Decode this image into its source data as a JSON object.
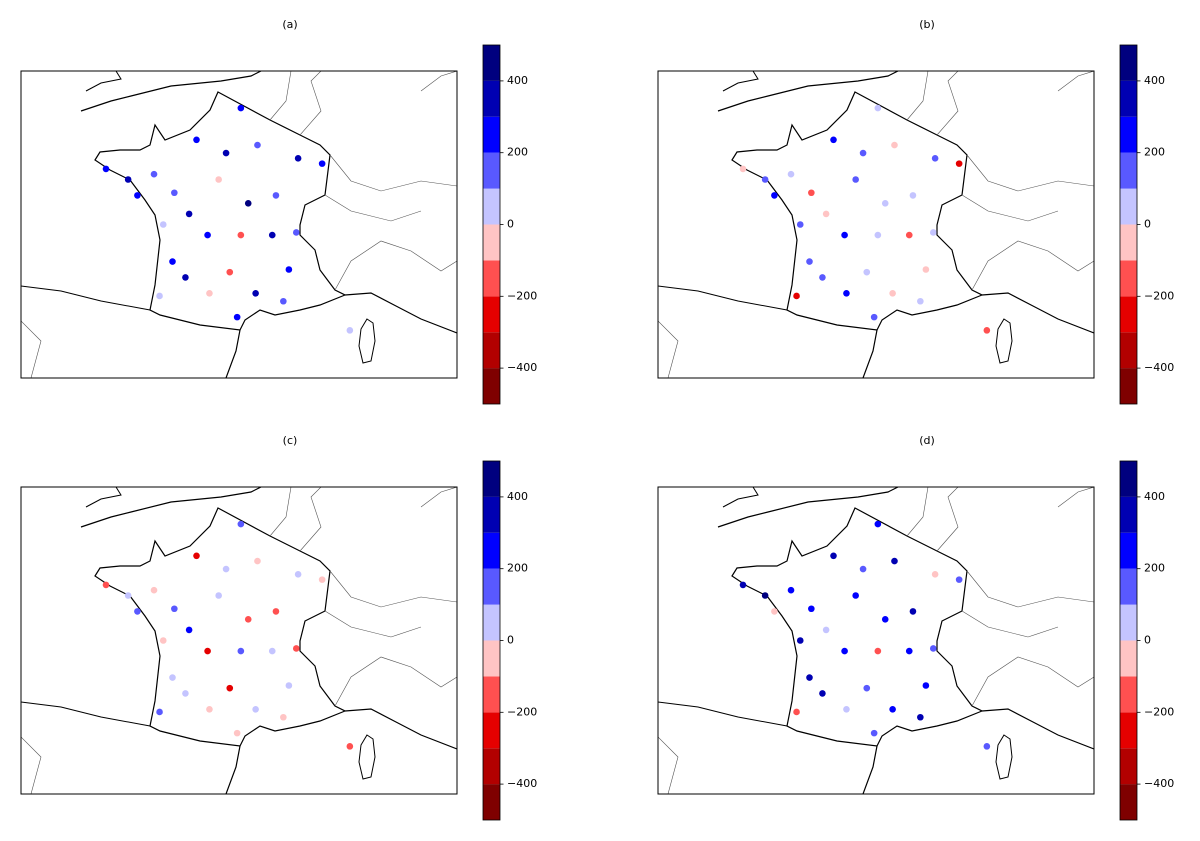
{
  "chart_data": [
    {
      "type": "scatter",
      "title": "(a)",
      "xlim": [
        -8.8,
        14.8
      ],
      "ylim": [
        40.4,
        52
      ],
      "x": [
        -4.2,
        -3.0,
        -1.6,
        -0.5,
        0.7,
        2.3,
        3.1,
        4.0,
        6.2,
        7.5,
        5.0,
        1.9,
        0.3,
        -1.1,
        1.3,
        3.1,
        4.8,
        6.1,
        -0.6,
        1.4,
        3.9,
        5.4,
        -1.3,
        2.9,
        9.0,
        0.1,
        2.5,
        5.7,
        -2.5,
        3.5
      ],
      "y": [
        48.3,
        47.9,
        48.1,
        47.4,
        49.4,
        48.9,
        50.6,
        49.2,
        48.7,
        48.5,
        47.3,
        47.9,
        46.6,
        46.2,
        45.8,
        45.8,
        45.8,
        45.9,
        44.8,
        43.6,
        43.6,
        43.3,
        43.5,
        42.7,
        42.2,
        44.2,
        44.4,
        44.5,
        47.3,
        47.0
      ],
      "values": [
        250,
        320,
        180,
        150,
        280,
        350,
        210,
        120,
        380,
        260,
        190,
        -50,
        330,
        80,
        240,
        -150,
        300,
        170,
        220,
        -30,
        360,
        140,
        60,
        270,
        90,
        310,
        -120,
        200,
        230,
        400
      ],
      "colorbar": {
        "lim": [
          -500,
          500
        ],
        "levels": [
          -500,
          -400,
          -300,
          -200,
          -100,
          0,
          100,
          200,
          300,
          400,
          500
        ],
        "colors": [
          "#7f0000",
          "#b20000",
          "#e50000",
          "#ff5050",
          "#ffc4c4",
          "#c4c4ff",
          "#5959ff",
          "#0000ff",
          "#0000b2",
          "#00007f"
        ],
        "ticks": [
          {
            "value": -400,
            "label": "−400"
          },
          {
            "value": -200,
            "label": "−200"
          },
          0,
          200,
          400
        ]
      }
    },
    {
      "type": "scatter",
      "title": "(b)",
      "xlim": [
        -8.8,
        14.8
      ],
      "ylim": [
        40.4,
        52
      ],
      "x": [
        -4.2,
        -3.0,
        -1.6,
        -0.5,
        0.7,
        2.3,
        3.1,
        4.0,
        6.2,
        7.5,
        5.0,
        1.9,
        0.3,
        -1.1,
        1.3,
        3.1,
        4.8,
        6.1,
        -0.6,
        1.4,
        3.9,
        5.4,
        -1.3,
        2.9,
        9.0,
        0.1,
        2.5,
        5.7,
        -2.5,
        3.5
      ],
      "y": [
        48.3,
        47.9,
        48.1,
        47.4,
        49.4,
        48.9,
        50.6,
        49.2,
        48.7,
        48.5,
        47.3,
        47.9,
        46.6,
        46.2,
        45.8,
        45.8,
        45.8,
        45.9,
        44.8,
        43.6,
        43.6,
        43.3,
        43.5,
        42.7,
        42.2,
        44.2,
        44.4,
        44.5,
        47.3,
        47.0
      ],
      "values": [
        -80,
        150,
        60,
        -150,
        220,
        130,
        40,
        -20,
        180,
        -250,
        90,
        110,
        -60,
        160,
        250,
        30,
        -180,
        70,
        120,
        210,
        -90,
        50,
        -230,
        140,
        -120,
        190,
        80,
        -40,
        260,
        20
      ],
      "colorbar": {
        "lim": [
          -500,
          500
        ],
        "levels": [
          -500,
          -400,
          -300,
          -200,
          -100,
          0,
          100,
          200,
          300,
          400,
          500
        ],
        "colors": [
          "#7f0000",
          "#b20000",
          "#e50000",
          "#ff5050",
          "#ffc4c4",
          "#c4c4ff",
          "#5959ff",
          "#0000ff",
          "#0000b2",
          "#00007f"
        ],
        "ticks": [
          {
            "value": -400,
            "label": "−400"
          },
          {
            "value": -200,
            "label": "−200"
          },
          0,
          200,
          400
        ]
      }
    },
    {
      "type": "scatter",
      "title": "(c)",
      "xlim": [
        -8.8,
        14.8
      ],
      "ylim": [
        40.4,
        52
      ],
      "x": [
        -4.2,
        -3.0,
        -1.6,
        -0.5,
        0.7,
        2.3,
        3.1,
        4.0,
        6.2,
        7.5,
        5.0,
        1.9,
        0.3,
        -1.1,
        1.3,
        3.1,
        4.8,
        6.1,
        -0.6,
        1.4,
        3.9,
        5.4,
        -1.3,
        2.9,
        9.0,
        0.1,
        2.5,
        5.7,
        -2.5,
        3.5
      ],
      "y": [
        48.3,
        47.9,
        48.1,
        47.4,
        49.4,
        48.9,
        50.6,
        49.2,
        48.7,
        48.5,
        47.3,
        47.9,
        46.6,
        46.2,
        45.8,
        45.8,
        45.8,
        45.9,
        44.8,
        43.6,
        43.6,
        43.3,
        43.5,
        42.7,
        42.2,
        44.2,
        44.4,
        44.5,
        47.3,
        47.0
      ],
      "values": [
        -150,
        60,
        -40,
        120,
        -220,
        30,
        160,
        -80,
        40,
        -30,
        -120,
        80,
        210,
        -60,
        -250,
        130,
        20,
        -170,
        90,
        -90,
        50,
        -60,
        140,
        -20,
        -180,
        70,
        -300,
        40,
        110,
        -130
      ],
      "colorbar": {
        "lim": [
          -500,
          500
        ],
        "levels": [
          -500,
          -400,
          -300,
          -200,
          -100,
          0,
          100,
          200,
          300,
          400,
          500
        ],
        "colors": [
          "#7f0000",
          "#b20000",
          "#e50000",
          "#ff5050",
          "#ffc4c4",
          "#c4c4ff",
          "#5959ff",
          "#0000ff",
          "#0000b2",
          "#00007f"
        ],
        "ticks": [
          {
            "value": -400,
            "label": "−400"
          },
          {
            "value": -200,
            "label": "−200"
          },
          0,
          200,
          400
        ]
      }
    },
    {
      "type": "scatter",
      "title": "(d)",
      "xlim": [
        -8.8,
        14.8
      ],
      "ylim": [
        40.4,
        52
      ],
      "x": [
        -4.2,
        -3.0,
        -1.6,
        -0.5,
        0.7,
        2.3,
        3.1,
        4.0,
        6.2,
        7.5,
        5.0,
        1.9,
        0.3,
        -1.1,
        1.3,
        3.1,
        4.8,
        6.1,
        -0.6,
        1.4,
        3.9,
        5.4,
        -1.3,
        2.9,
        9.0,
        0.1,
        2.5,
        5.7,
        -2.5,
        3.5
      ],
      "y": [
        48.3,
        47.9,
        48.1,
        47.4,
        49.4,
        48.9,
        50.6,
        49.2,
        48.7,
        48.5,
        47.3,
        47.9,
        46.6,
        46.2,
        45.8,
        45.8,
        45.8,
        45.9,
        44.8,
        43.6,
        43.6,
        43.3,
        43.5,
        42.7,
        42.2,
        44.2,
        44.4,
        44.5,
        47.3,
        47.0
      ],
      "values": [
        380,
        420,
        290,
        210,
        330,
        150,
        260,
        310,
        -70,
        180,
        350,
        230,
        60,
        320,
        280,
        -140,
        200,
        160,
        370,
        40,
        250,
        300,
        -110,
        190,
        150,
        340,
        120,
        270,
        -40,
        220
      ],
      "colorbar": {
        "lim": [
          -500,
          500
        ],
        "levels": [
          -500,
          -400,
          -300,
          -200,
          -100,
          0,
          100,
          200,
          300,
          400,
          500
        ],
        "colors": [
          "#7f0000",
          "#b20000",
          "#e50000",
          "#ff5050",
          "#ffc4c4",
          "#c4c4ff",
          "#5959ff",
          "#0000ff",
          "#0000b2",
          "#00007f"
        ],
        "ticks": [
          {
            "value": -400,
            "label": "−400"
          },
          {
            "value": -200,
            "label": "−200"
          },
          0,
          200,
          400
        ]
      }
    }
  ]
}
